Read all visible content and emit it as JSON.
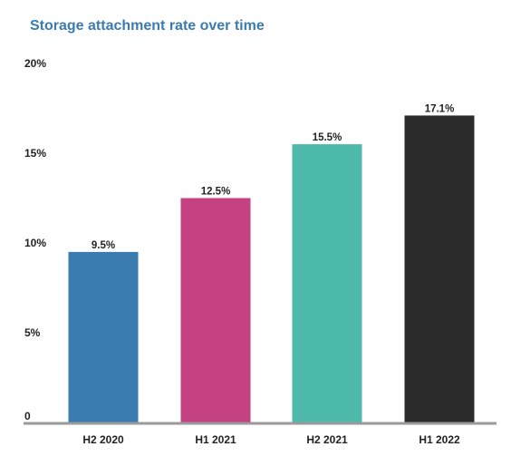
{
  "chart_data": {
    "type": "bar",
    "title": "Storage attachment rate over time",
    "title_color": "#3a7bb0",
    "categories": [
      "H2 2020",
      "H1 2021",
      "H2 2021",
      "H1 2022"
    ],
    "values": [
      9.5,
      12.5,
      15.5,
      17.1
    ],
    "data_labels": [
      "9.5%",
      "12.5%",
      "15.5%",
      "17.1%"
    ],
    "colors": [
      "#3a7bb0",
      "#c44282",
      "#4dbaab",
      "#2b2b2b"
    ],
    "ylim": [
      0,
      20
    ],
    "yticks": [
      {
        "value": 0,
        "label": "0"
      },
      {
        "value": 5,
        "label": "5%"
      },
      {
        "value": 10,
        "label": "10%"
      },
      {
        "value": 15,
        "label": "15%"
      },
      {
        "value": 20,
        "label": "20%"
      }
    ],
    "xlabel": "",
    "ylabel": "",
    "grid": false,
    "legend": "none"
  }
}
